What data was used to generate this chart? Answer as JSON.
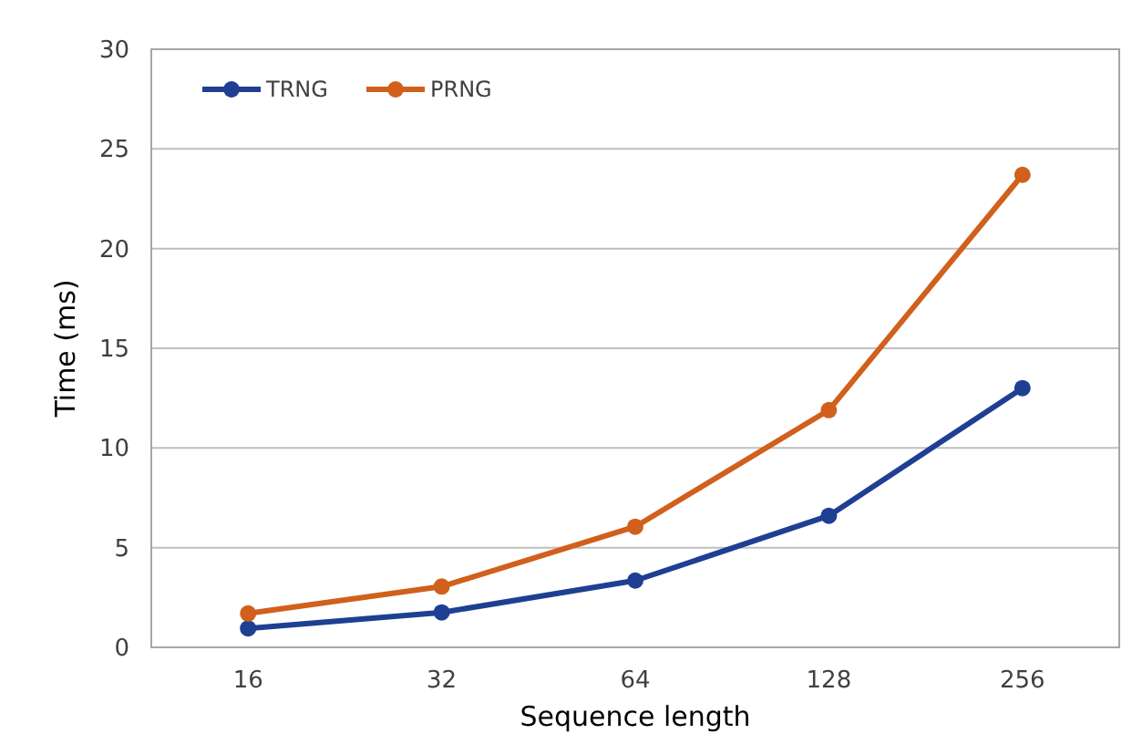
{
  "chart_data": {
    "type": "line",
    "xlabel": "Sequence length",
    "ylabel": "Time (ms)",
    "categories": [
      "16",
      "32",
      "64",
      "128",
      "256"
    ],
    "series": [
      {
        "name": "TRNG",
        "color": "#1f3f93",
        "values": [
          0.95,
          1.75,
          3.35,
          6.6,
          13.0
        ]
      },
      {
        "name": "PRNG",
        "color": "#d0601c",
        "values": [
          1.7,
          3.05,
          6.05,
          11.9,
          23.7
        ]
      }
    ],
    "ylim": [
      0,
      30
    ],
    "yticks": [
      0,
      5,
      10,
      15,
      20,
      25,
      30
    ],
    "grid": "y",
    "legend": "top left",
    "marker": "circle",
    "line_style": "solid"
  }
}
